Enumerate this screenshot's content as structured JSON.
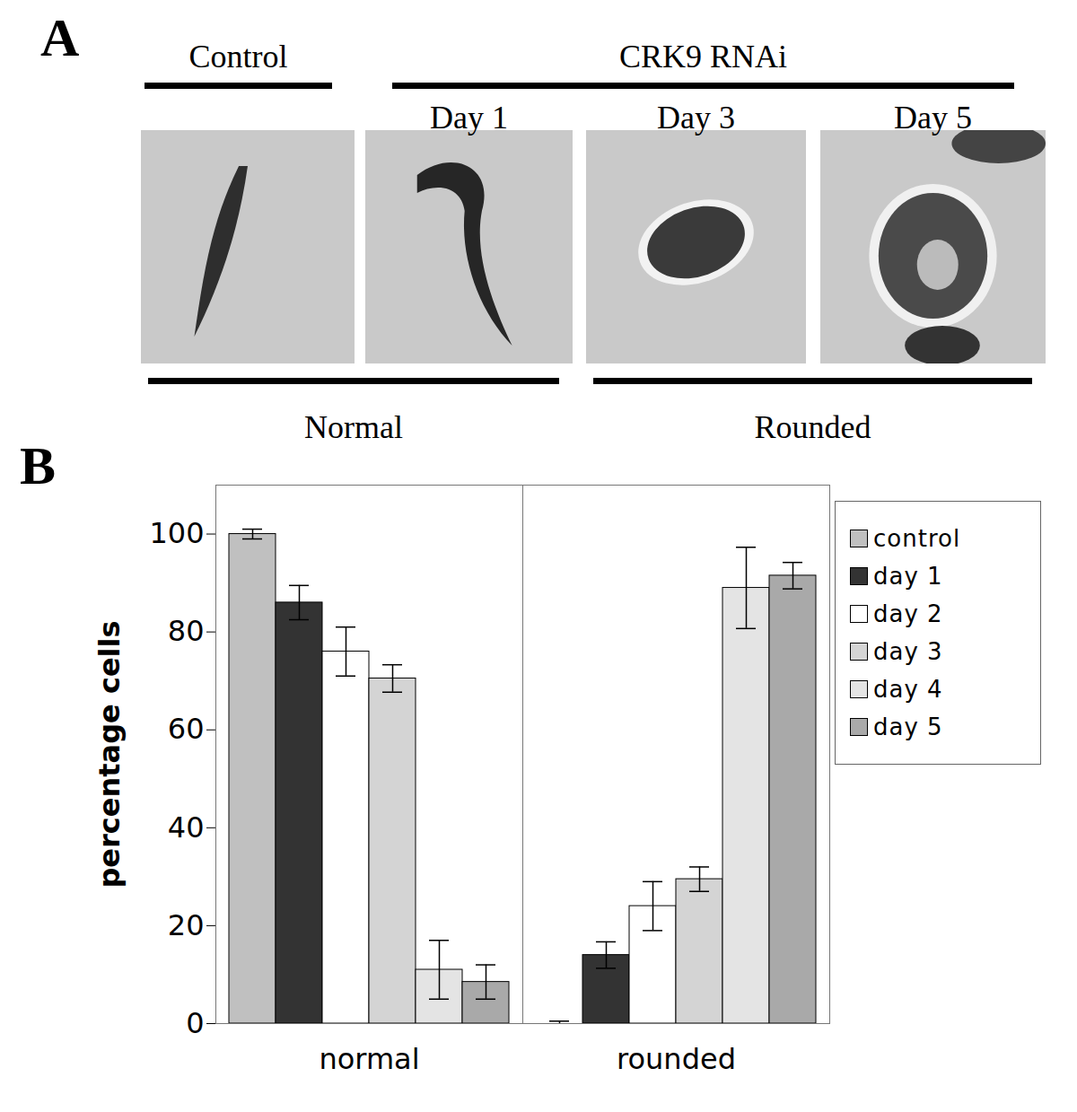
{
  "panel_a": {
    "label": "A",
    "header_groups": [
      {
        "text": "Control",
        "images": [
          0
        ]
      },
      {
        "text": "CRK9 RNAi",
        "images": [
          1,
          2,
          3
        ]
      }
    ],
    "image_captions": [
      null,
      "Day 1",
      "Day 3",
      "Day 5"
    ],
    "footer_groups": [
      {
        "text": "Normal",
        "images": [
          0,
          1
        ]
      },
      {
        "text": "Rounded",
        "images": [
          2,
          3
        ]
      }
    ]
  },
  "chart_data": {
    "type": "bar",
    "panel_label": "B",
    "y_label": "percentage cells",
    "categories": [
      "normal",
      "rounded"
    ],
    "series": [
      {
        "name": "control",
        "color": "#c0c0c0",
        "values": [
          100,
          0
        ],
        "errors": [
          1,
          0.5
        ]
      },
      {
        "name": "day 1",
        "color": "#333333",
        "values": [
          86,
          14
        ],
        "errors": [
          3.5,
          2.7
        ]
      },
      {
        "name": "day 2",
        "color": "#ffffff",
        "values": [
          76,
          24
        ],
        "errors": [
          5,
          5
        ]
      },
      {
        "name": "day 3",
        "color": "#d4d4d4",
        "values": [
          70.5,
          29.5
        ],
        "errors": [
          2.8,
          2.5
        ]
      },
      {
        "name": "day 4",
        "color": "#e4e4e4",
        "values": [
          11,
          89
        ],
        "errors": [
          6,
          8.3
        ]
      },
      {
        "name": "day 5",
        "color": "#a9a9a9",
        "values": [
          8.5,
          91.5
        ],
        "errors": [
          3.5,
          2.7
        ]
      }
    ],
    "ylim": [
      0,
      110
    ],
    "yticks": [
      0,
      20,
      40,
      60,
      80,
      100
    ],
    "legend": "right"
  }
}
